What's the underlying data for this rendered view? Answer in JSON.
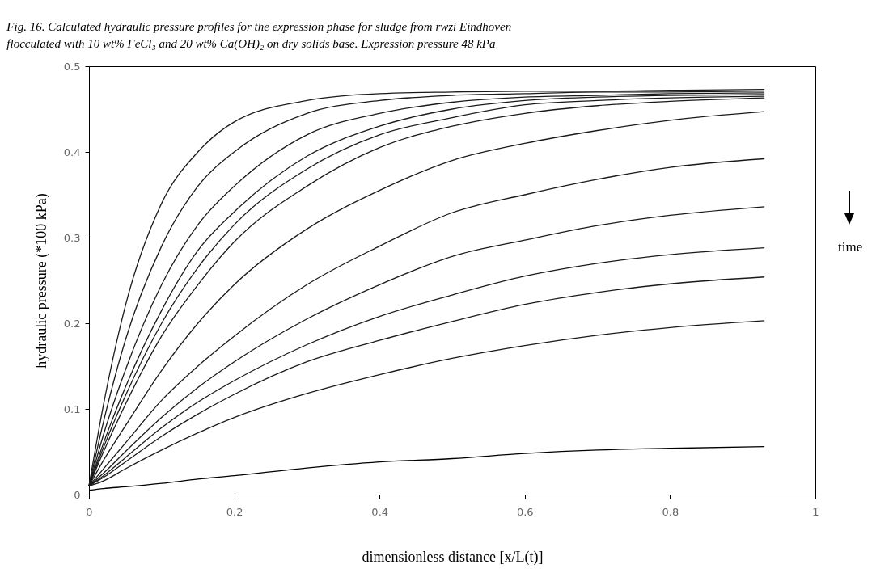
{
  "chart_data": {
    "type": "line",
    "title": "Fig. 16. Calculated hydraulic pressure profiles for the expression phase for sludge from rwzi Eindhoven flocculated with 10 wt% FeCl₃ and 20 wt% Ca(OH)₂ on dry solids base. Expression pressure 48 kPa",
    "xlabel": "dimensionless distance [x/L(t)]",
    "ylabel": "hydraulic pressure (*100 kPa)",
    "annotations": [
      "time"
    ],
    "x": [
      0,
      0.02,
      0.05,
      0.1,
      0.15,
      0.2,
      0.3,
      0.4,
      0.5,
      0.6,
      0.7,
      0.8,
      0.93
    ],
    "series": [
      {
        "color": "#1a1a1a",
        "values": [
          0.01,
          0.105,
          0.22,
          0.34,
          0.4,
          0.435,
          0.46,
          0.468,
          0.47,
          0.471,
          0.471,
          0.472,
          0.473
        ]
      },
      {
        "color": "#1a1a1a",
        "values": [
          0.01,
          0.085,
          0.18,
          0.29,
          0.36,
          0.4,
          0.445,
          0.46,
          0.466,
          0.468,
          0.47,
          0.47,
          0.471
        ]
      },
      {
        "color": "#1a1a1a",
        "values": [
          0.01,
          0.07,
          0.145,
          0.245,
          0.315,
          0.36,
          0.42,
          0.445,
          0.458,
          0.464,
          0.466,
          0.468,
          0.469
        ]
      },
      {
        "color": "#1a1a1a",
        "values": [
          0.01,
          0.06,
          0.125,
          0.215,
          0.285,
          0.33,
          0.395,
          0.43,
          0.45,
          0.46,
          0.464,
          0.466,
          0.467
        ]
      },
      {
        "color": "#1a1a1a",
        "values": [
          0.01,
          0.055,
          0.115,
          0.2,
          0.265,
          0.315,
          0.38,
          0.42,
          0.44,
          0.455,
          0.46,
          0.463,
          0.465
        ]
      },
      {
        "color": "#1a1a1a",
        "values": [
          0.01,
          0.05,
          0.105,
          0.185,
          0.245,
          0.295,
          0.36,
          0.405,
          0.43,
          0.445,
          0.454,
          0.459,
          0.463
        ]
      },
      {
        "color": "#1a1a1a",
        "values": [
          0.01,
          0.04,
          0.08,
          0.145,
          0.2,
          0.245,
          0.31,
          0.355,
          0.39,
          0.41,
          0.425,
          0.437,
          0.447
        ]
      },
      {
        "color": "#1a1a1a",
        "values": [
          0.01,
          0.03,
          0.06,
          0.11,
          0.15,
          0.185,
          0.245,
          0.29,
          0.329,
          0.35,
          0.368,
          0.382,
          0.392
        ]
      },
      {
        "color": "#1a1a1a",
        "values": [
          0.01,
          0.025,
          0.05,
          0.09,
          0.125,
          0.155,
          0.205,
          0.245,
          0.278,
          0.297,
          0.314,
          0.326,
          0.336
        ]
      },
      {
        "color": "#1a1a1a",
        "values": [
          0.01,
          0.022,
          0.043,
          0.078,
          0.108,
          0.133,
          0.175,
          0.208,
          0.233,
          0.255,
          0.27,
          0.28,
          0.288
        ]
      },
      {
        "color": "#1a1a1a",
        "values": [
          0.01,
          0.02,
          0.038,
          0.068,
          0.094,
          0.117,
          0.155,
          0.18,
          0.202,
          0.222,
          0.236,
          0.246,
          0.254
        ]
      },
      {
        "color": "#1a1a1a",
        "values": [
          0.01,
          0.016,
          0.03,
          0.052,
          0.072,
          0.09,
          0.118,
          0.14,
          0.159,
          0.174,
          0.186,
          0.195,
          0.203
        ]
      },
      {
        "color": "#000000",
        "values": [
          0.005,
          0.007,
          0.009,
          0.013,
          0.018,
          0.022,
          0.031,
          0.038,
          0.042,
          0.048,
          0.052,
          0.054,
          0.056
        ]
      }
    ],
    "xlim": [
      0,
      1
    ],
    "xticks": [
      0,
      0.2,
      0.4,
      0.6,
      0.8,
      1
    ],
    "ylim": [
      0,
      0.5
    ],
    "yticks": [
      0,
      0.1,
      0.2,
      0.3,
      0.4,
      0.5
    ],
    "grid": false,
    "legend": false,
    "marker": "none",
    "line_style": "solid"
  }
}
